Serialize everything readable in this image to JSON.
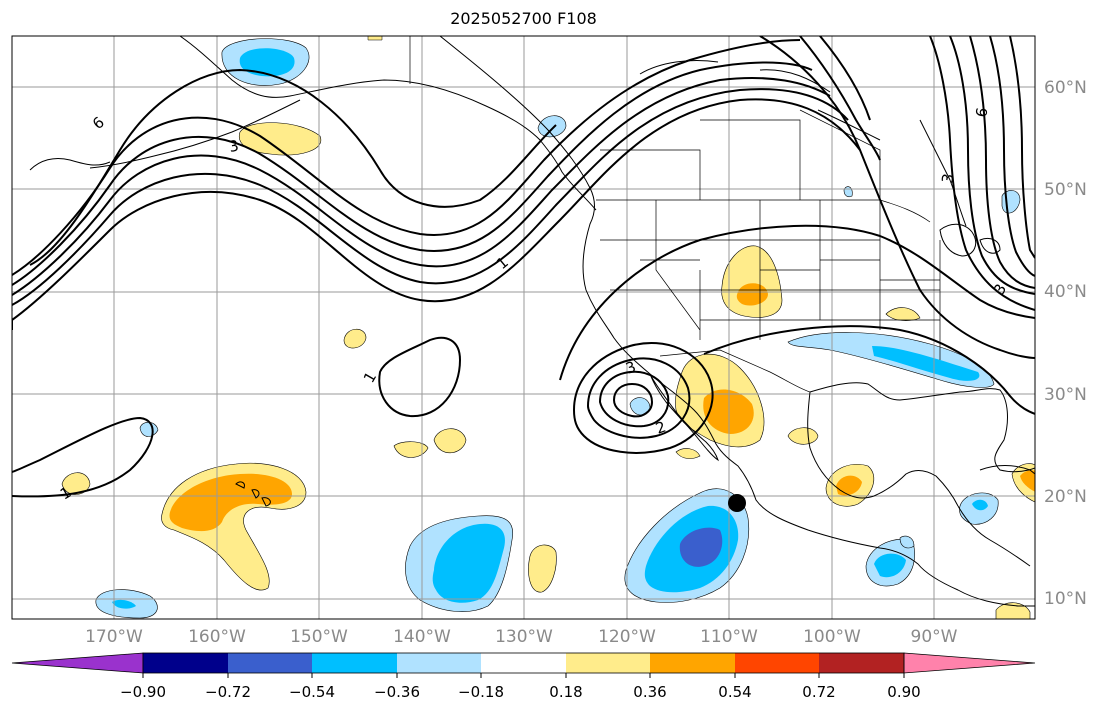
{
  "title": "2025052700 F108",
  "map": {
    "longitude_labels": [
      "170°W",
      "160°W",
      "150°W",
      "140°W",
      "130°W",
      "120°W",
      "110°W",
      "100°W",
      "90°W"
    ],
    "latitude_labels": [
      "60°N",
      "50°N",
      "40°N",
      "30°N",
      "20°N",
      "10°N"
    ],
    "contour_labels": [
      "6",
      "3",
      "1",
      "1",
      "3",
      "2",
      "1",
      "6",
      "3",
      "3"
    ],
    "marker": {
      "name": "black-dot",
      "lon": -109,
      "lat": 19.3
    }
  },
  "colorbar": {
    "tick_labels": [
      "−0.90",
      "−0.72",
      "−0.54",
      "−0.36",
      "−0.18",
      "0.18",
      "0.36",
      "0.54",
      "0.72",
      "0.90"
    ],
    "colors": [
      "#9a32cd",
      "#00008b",
      "#3a5fcd",
      "#00bfff",
      "#b0e2ff",
      "#ffffff",
      "#ffec8b",
      "#ffa500",
      "#ff4500",
      "#b22222",
      "#ff82ab"
    ]
  }
}
